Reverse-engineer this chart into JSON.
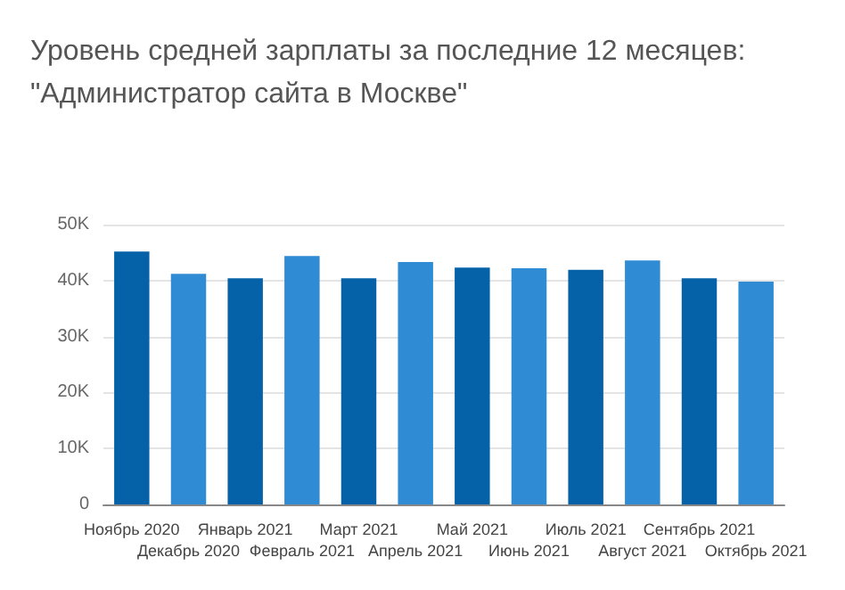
{
  "chart_data": {
    "type": "bar",
    "title": "Уровень средней зарплаты за последние 12 месяцев:\n\"Администратор сайта в Москве\"",
    "categories": [
      "Ноябрь 2020",
      "Декабрь 2020",
      "Январь 2021",
      "Февраль 2021",
      "Март 2021",
      "Апрель 2021",
      "Май 2021",
      "Июнь 2021",
      "Июль 2021",
      "Август 2021",
      "Сентябрь 2021",
      "Октябрь 2021"
    ],
    "values": [
      45200,
      41200,
      40400,
      44400,
      40400,
      43300,
      42300,
      42200,
      41900,
      43600,
      40400,
      39800
    ],
    "colors": [
      "#0562a8",
      "#2e8bd4",
      "#0562a8",
      "#2e8bd4",
      "#0562a8",
      "#2e8bd4",
      "#0562a8",
      "#2e8bd4",
      "#0562a8",
      "#2e8bd4",
      "#0562a8",
      "#2e8bd4"
    ],
    "ylim": [
      0,
      50000
    ],
    "yticks": [
      0,
      {
        "value": 10000,
        "label": "10K"
      },
      {
        "value": 20000,
        "label": "20K"
      },
      {
        "value": 30000,
        "label": "30K"
      },
      {
        "value": 40000,
        "label": "40K"
      },
      {
        "value": 50000,
        "label": "50K"
      }
    ],
    "grid": true
  }
}
